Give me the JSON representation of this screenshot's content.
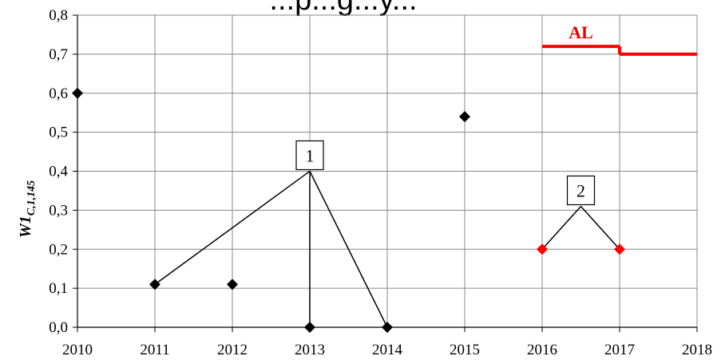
{
  "chart_data": {
    "type": "scatter",
    "title": "...p...g...y...",
    "ylabel": "W1",
    "ylabel_subscript": "C,1,145",
    "xlim": [
      2010,
      2018
    ],
    "ylim": [
      0,
      0.8
    ],
    "x_ticks": [
      "2010",
      "2011",
      "2012",
      "2013",
      "2014",
      "2015",
      "2016",
      "2017",
      "2018"
    ],
    "y_ticks": [
      "0,0",
      "0,1",
      "0,2",
      "0,3",
      "0,4",
      "0,5",
      "0,6",
      "0,7",
      "0,8"
    ],
    "grid": true,
    "series": [
      {
        "color": "#000000",
        "marker": "diamond",
        "points": [
          {
            "x": 2010,
            "y": 0.6
          },
          {
            "x": 2011,
            "y": 0.11
          },
          {
            "x": 2012,
            "y": 0.11
          },
          {
            "x": 2013,
            "y": 0.0
          },
          {
            "x": 2014,
            "y": 0.0
          },
          {
            "x": 2015,
            "y": 0.54
          }
        ]
      },
      {
        "color": "#ff0000",
        "marker": "diamond",
        "points": [
          {
            "x": 2016,
            "y": 0.2
          },
          {
            "x": 2017,
            "y": 0.2
          }
        ]
      }
    ],
    "limit_line": {
      "label": "AL",
      "color": "#ff0000",
      "segments": [
        {
          "x0": 2016,
          "x1": 2017,
          "y": 0.72
        },
        {
          "x0": 2017,
          "x1": 2018,
          "y": 0.7
        }
      ]
    },
    "callouts": [
      {
        "label": "1",
        "anchor": {
          "x": 2013,
          "y": 0.4
        },
        "targets": [
          {
            "x": 2011,
            "y": 0.11
          },
          {
            "x": 2013,
            "y": 0.0
          },
          {
            "x": 2014,
            "y": 0.0
          }
        ]
      },
      {
        "label": "2",
        "anchor": {
          "x": 2016.5,
          "y": 0.31
        },
        "targets": [
          {
            "x": 2016,
            "y": 0.2
          },
          {
            "x": 2017,
            "y": 0.2
          }
        ]
      }
    ]
  }
}
